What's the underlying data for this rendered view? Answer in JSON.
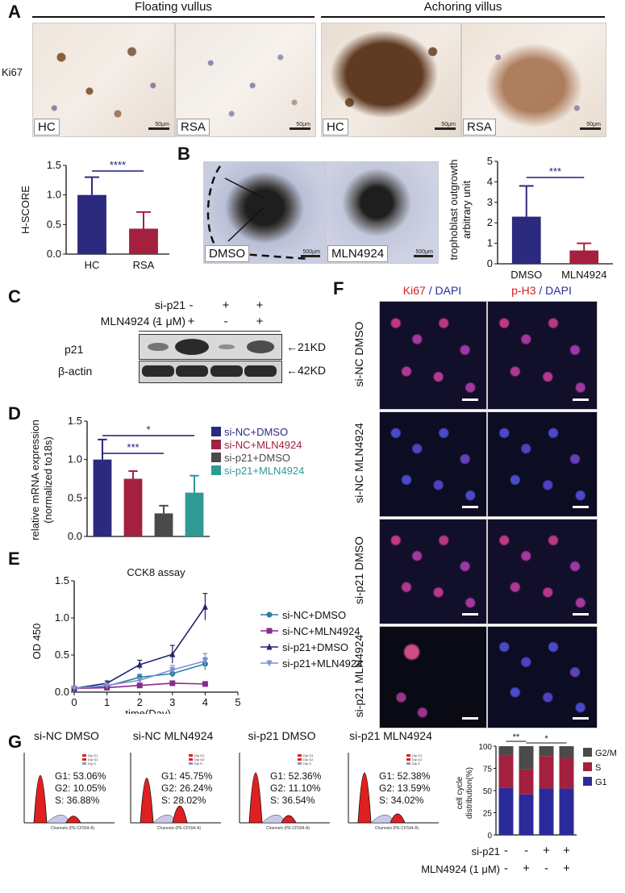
{
  "panel_labels": {
    "a": "A",
    "b": "B",
    "c": "C",
    "d": "D",
    "e": "E",
    "f": "F",
    "g": "G"
  },
  "panelA": {
    "floating_title": "Floating vullus",
    "anchoring_title": "Achoring villus",
    "row_label": "Ki67",
    "images": [
      {
        "label": "HC",
        "scale": "50μm"
      },
      {
        "label": "RSA",
        "scale": "50μm"
      },
      {
        "label": "HC",
        "scale": "50μm"
      },
      {
        "label": "RSA",
        "scale": "50μm"
      }
    ]
  },
  "panelB": {
    "images": [
      {
        "label": "DMSO",
        "scale": "500μm"
      },
      {
        "label": "MLN4924",
        "scale": "500μm"
      }
    ]
  },
  "panelC": {
    "row1_label": "si-p21",
    "row2_label": "MLN4924 (1 μM)",
    "row1_signs": [
      "-",
      "-",
      "+",
      "+"
    ],
    "row2_signs": [
      "-",
      "+",
      "-",
      "+"
    ],
    "band1_label": "p21",
    "band2_label": "β-actin",
    "band1_size": "←21KD",
    "band2_size": "←42KD",
    "p21_intensity": [
      0.35,
      1.0,
      0.12,
      0.7
    ]
  },
  "panelF": {
    "col1_stain": "Ki67",
    "col1_dapi": " / DAPI",
    "col2_stain": "p-H3",
    "col2_dapi": " / DAPI",
    "rows": [
      "si-NC DMSO",
      "si-NC MLN4924",
      "si-p21 DMSO",
      "si-p21 MLN4924"
    ]
  },
  "panelG": {
    "histograms": [
      {
        "title": "si-NC DMSO",
        "g1": "G1: 53.06%",
        "g2": "G2: 10.05%",
        "s": "S: 36.88%"
      },
      {
        "title": "si-NC MLN4924",
        "g1": "G1: 45.75%",
        "g2": "G2: 26.24%",
        "s": "S: 28.02%"
      },
      {
        "title": "si-p21 DMSO",
        "g1": "G1: 52.36%",
        "g2": "G2: 11.10%",
        "s": "S: 36.54%"
      },
      {
        "title": "si-p21 MLN4924",
        "g1": "G1: 52.38%",
        "g2": "G2: 13.59%",
        "s": "S: 34.02%"
      }
    ],
    "hist_xlabel": "Channels (PE-CF594-A)",
    "hist_legend": [
      "Dip G1",
      "Dip G2",
      "Dip S"
    ],
    "row1_label": "si-p21",
    "row2_label": "MLN4924 (1 μM)",
    "row1_signs": [
      "-",
      "-",
      "+",
      "+"
    ],
    "row2_signs": [
      "-",
      "+",
      "-",
      "+"
    ]
  },
  "colors": {
    "navy": "#2b2a7e",
    "crimson": "#a3203f",
    "gray": "#4a4a4a",
    "teal": "#2f9a96"
  },
  "chart_data": [
    {
      "id": "hscore",
      "type": "bar",
      "categories": [
        "HC",
        "RSA"
      ],
      "values": [
        1.0,
        0.43
      ],
      "errors": [
        0.3,
        0.28
      ],
      "colors": [
        "#2b2a7e",
        "#a3203f"
      ],
      "ylabel": "H-SCORE",
      "ylim": [
        0,
        1.5
      ],
      "yticks": [
        "0.0",
        "0.5",
        "1.0",
        "1.5"
      ],
      "significance": [
        {
          "label": "****",
          "from": 0,
          "to": 1
        }
      ]
    },
    {
      "id": "trophoblast",
      "type": "bar",
      "categories": [
        "DMSO",
        "MLN4924"
      ],
      "values": [
        2.3,
        0.65
      ],
      "errors": [
        1.5,
        0.35
      ],
      "colors": [
        "#2b2a7e",
        "#a3203f"
      ],
      "ylabel": "trophoblast outgrowth",
      "ylabel2": "arbitrary unit",
      "ylim": [
        0,
        5
      ],
      "yticks": [
        "0",
        "1",
        "2",
        "3",
        "4",
        "5"
      ],
      "significance": [
        {
          "label": "***",
          "from": 0,
          "to": 1
        }
      ]
    },
    {
      "id": "mrna",
      "type": "bar",
      "categories": [
        "si-NC+DMSO",
        "si-NC+MLN4924",
        "si-p21+DMSO",
        "si-p21+MLN4924"
      ],
      "values": [
        1.0,
        0.75,
        0.3,
        0.57
      ],
      "errors": [
        0.26,
        0.1,
        0.1,
        0.22
      ],
      "colors": [
        "#2b2a7e",
        "#a3203f",
        "#4a4a4a",
        "#2f9a96"
      ],
      "ylabel": "relative mRNA expression",
      "ylabel2": "(normalized to18s)",
      "ylim": [
        0,
        1.5
      ],
      "yticks": [
        "0.0",
        "0.5",
        "1.0",
        "1.5"
      ],
      "legend": [
        "si-NC+DMSO",
        "si-NC+MLN4924",
        "si-p21+DMSO",
        "si-p21+MLN4924"
      ],
      "significance": [
        {
          "label": "*",
          "from": 0,
          "to": 3
        },
        {
          "label": "***",
          "from": 0,
          "to": 2
        }
      ]
    },
    {
      "id": "cck8",
      "type": "line",
      "title": "CCK8 assay",
      "xlabel": "time(Day)",
      "ylabel": "OD 450",
      "xlim": [
        0,
        5
      ],
      "ylim": [
        0,
        1.5
      ],
      "xticks": [
        "0",
        "1",
        "2",
        "3",
        "4",
        "5"
      ],
      "yticks": [
        "0.0",
        "0.5",
        "1.0",
        "1.5"
      ],
      "x": [
        0,
        1,
        2,
        3,
        4
      ],
      "series": [
        {
          "name": "si-NC+DMSO",
          "color": "#2f7fa0",
          "marker": "circle",
          "values": [
            0.05,
            0.08,
            0.2,
            0.25,
            0.38
          ],
          "errors": [
            0.01,
            0.02,
            0.04,
            0.05,
            0.08
          ]
        },
        {
          "name": "si-NC+MLN4924",
          "color": "#8a2a8a",
          "marker": "square",
          "values": [
            0.05,
            0.06,
            0.09,
            0.12,
            0.11
          ],
          "errors": [
            0.01,
            0.01,
            0.02,
            0.02,
            0.02
          ]
        },
        {
          "name": "si-p21+DMSO",
          "color": "#23236e",
          "marker": "triangle",
          "values": [
            0.05,
            0.12,
            0.37,
            0.51,
            1.15
          ],
          "errors": [
            0.01,
            0.03,
            0.06,
            0.12,
            0.18
          ]
        },
        {
          "name": "si-p21+MLN4924",
          "color": "#7f8fd6",
          "marker": "triangle-down",
          "values": [
            0.05,
            0.09,
            0.16,
            0.3,
            0.42
          ],
          "errors": [
            0.01,
            0.02,
            0.03,
            0.06,
            0.1
          ]
        }
      ]
    },
    {
      "id": "cellcycle",
      "type": "bar",
      "stacked": true,
      "categories": [
        "1",
        "2",
        "3",
        "4"
      ],
      "ylabel": "cell cycle",
      "ylabel2": "distribution(%)",
      "ylim": [
        0,
        100
      ],
      "yticks": [
        "0",
        "25",
        "50",
        "75",
        "100"
      ],
      "series": [
        {
          "name": "G1",
          "color": "#2b2a9a",
          "values": [
            53.06,
            45.75,
            52.36,
            52.38
          ]
        },
        {
          "name": "S",
          "color": "#a3203f",
          "values": [
            36.88,
            28.02,
            36.54,
            34.02
          ]
        },
        {
          "name": "G2/M",
          "color": "#4a4a4a",
          "values": [
            10.05,
            26.24,
            11.1,
            13.59
          ]
        }
      ],
      "legend": [
        "G2/M",
        "S",
        "G1"
      ],
      "significance": [
        {
          "label": "**",
          "from": 0,
          "to": 1
        },
        {
          "label": "*",
          "from": 1,
          "to": 3
        }
      ]
    }
  ]
}
